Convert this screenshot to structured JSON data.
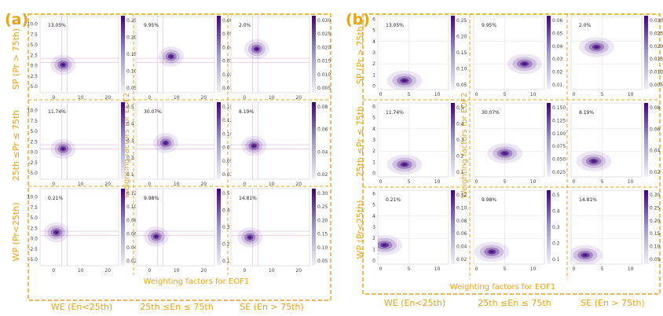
{
  "panel_letters": [
    "(a)",
    "(b)"
  ],
  "col_labels": [
    "WE (En<25th)",
    "25th ≤En ≤ 75th",
    "SE (En > 75th)"
  ],
  "row_labels": [
    "SP (Pr > 75th)",
    "25th ≤Pr ≤ 75th",
    "WP (Pr<25th)"
  ],
  "xlabel": "Weighting factors for EOF1",
  "ylabel": "Weighting factors for EOF2",
  "colors": {
    "accent": "#e8a317",
    "cmap_low": "#f2eff8",
    "cmap_high": "#3f007d"
  },
  "chart_data": [
    {
      "type": "heatmap",
      "panel": "(a)",
      "xticks": [
        0,
        10,
        20
      ],
      "yticks": [
        -5.0,
        -2.5,
        0.0,
        2.5,
        5.0,
        7.5,
        10.0
      ],
      "xlim": [
        -5,
        24
      ],
      "ylim": [
        -6.5,
        12
      ],
      "cells": [
        {
          "row": 0,
          "col": 0,
          "percent": "13.05%",
          "cbar": [
            "0.25",
            "0.20",
            "0.15",
            "0.10",
            "0.05"
          ],
          "cx": 3.5,
          "cy": 0.2
        },
        {
          "row": 0,
          "col": 1,
          "percent": "9.95%",
          "cbar": [
            "0.06",
            "0.05",
            "0.04",
            "0.03",
            "0.02",
            "0.01"
          ],
          "cx": 8,
          "cy": 2.2
        },
        {
          "row": 0,
          "col": 2,
          "percent": "2.0%",
          "cbar": [
            "0.030",
            "0.025",
            "0.020",
            "0.015",
            "0.010",
            "0.005"
          ],
          "cx": 4.5,
          "cy": 4
        },
        {
          "row": 1,
          "col": 0,
          "percent": "11.74%",
          "cbar": [
            "0.5",
            "0.4",
            "0.3",
            "0.2",
            "0.1"
          ],
          "cx": 3.5,
          "cy": 0.8
        },
        {
          "row": 1,
          "col": 1,
          "percent": "30.07%",
          "cbar": [
            "0.150",
            "0.125",
            "0.100",
            "0.075",
            "0.050",
            "0.025"
          ],
          "cx": 6,
          "cy": 2.2
        },
        {
          "row": 1,
          "col": 2,
          "percent": "8.19%",
          "cbar": [
            "0.08",
            "0.06",
            "0.04",
            "0.02"
          ],
          "cx": 3.5,
          "cy": 1.5
        },
        {
          "row": 2,
          "col": 0,
          "percent": "0.21%",
          "cbar": [
            "0.12",
            "0.10",
            "0.08",
            "0.06",
            "0.04",
            "0.02"
          ],
          "cx": 1,
          "cy": 1.5
        },
        {
          "row": 2,
          "col": 1,
          "percent": "9.98%",
          "cbar": [
            "0.5",
            "0.4",
            "0.3",
            "0.2",
            "0.1"
          ],
          "cx": 2.5,
          "cy": 0.5
        },
        {
          "row": 2,
          "col": 2,
          "percent": "14.81%",
          "cbar": [
            "0.30",
            "0.25",
            "0.20",
            "0.15",
            "0.10",
            "0.05"
          ],
          "cx": 2,
          "cy": 0.3
        }
      ]
    },
    {
      "type": "heatmap",
      "panel": "(b)",
      "xticks": [
        0,
        5,
        10
      ],
      "yticks": [
        0,
        1,
        2,
        3,
        4,
        5,
        6
      ],
      "xlim": [
        -0.5,
        12
      ],
      "ylim": [
        -0.3,
        6.3
      ],
      "cells": [
        {
          "row": 0,
          "col": 0,
          "percent": "13.05%",
          "cbar": [
            "0.25",
            "0.20",
            "0.15",
            "0.10",
            "0.05"
          ],
          "cx": 4.2,
          "cy": 0.5
        },
        {
          "row": 0,
          "col": 1,
          "percent": "9.95%",
          "cbar": [
            "0.06",
            "0.05",
            "0.04",
            "0.03",
            "0.02",
            "0.01"
          ],
          "cx": 8.5,
          "cy": 2.0
        },
        {
          "row": 0,
          "col": 2,
          "percent": "2.0%",
          "cbar": [
            "0.030",
            "0.025",
            "0.020",
            "0.015",
            "0.010",
            "0.005"
          ],
          "cx": 4.0,
          "cy": 3.5
        },
        {
          "row": 1,
          "col": 0,
          "percent": "11.74%",
          "cbar": [
            "0.5",
            "0.4",
            "0.3",
            "0.2",
            "0.1"
          ],
          "cx": 4.2,
          "cy": 0.8
        },
        {
          "row": 1,
          "col": 1,
          "percent": "30.07%",
          "cbar": [
            "0.150",
            "0.125",
            "0.100",
            "0.075",
            "0.050",
            "0.025"
          ],
          "cx": 5.0,
          "cy": 1.8
        },
        {
          "row": 1,
          "col": 2,
          "percent": "8.19%",
          "cbar": [
            "0.08",
            "0.06",
            "0.04",
            "0.02"
          ],
          "cx": 3.5,
          "cy": 1.1
        },
        {
          "row": 2,
          "col": 0,
          "percent": "0.21%",
          "cbar": [
            "0.12",
            "0.10",
            "0.08",
            "0.06",
            "0.04",
            "0.02"
          ],
          "cx": 0.7,
          "cy": 1.4
        },
        {
          "row": 2,
          "col": 1,
          "percent": "9.98%",
          "cbar": [
            "0.5",
            "0.4",
            "0.3",
            "0.2",
            "0.1"
          ],
          "cx": 2.7,
          "cy": 0.8
        },
        {
          "row": 2,
          "col": 2,
          "percent": "14.81%",
          "cbar": [
            "0.30",
            "0.25",
            "0.20",
            "0.15",
            "0.10",
            "0.05"
          ],
          "cx": 2.0,
          "cy": 0.5
        }
      ]
    }
  ]
}
